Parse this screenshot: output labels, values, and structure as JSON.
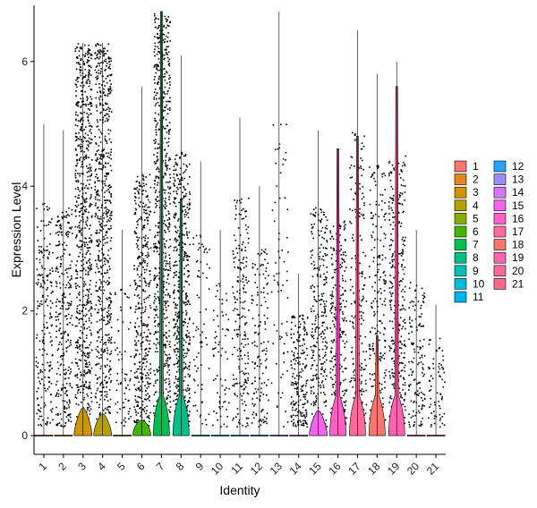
{
  "chart_data": {
    "type": "violin",
    "xlabel": "Identity",
    "ylabel": "Expression Level",
    "ylim": [
      -0.3,
      6.9
    ],
    "yticks": [
      0,
      2,
      4,
      6
    ],
    "categories": [
      "1",
      "2",
      "3",
      "4",
      "5",
      "6",
      "7",
      "8",
      "9",
      "10",
      "11",
      "12",
      "13",
      "14",
      "15",
      "16",
      "17",
      "18",
      "19",
      "20",
      "21"
    ],
    "max_values": [
      5.0,
      4.9,
      6.3,
      6.3,
      3.3,
      5.6,
      6.8,
      6.1,
      4.4,
      3.3,
      5.1,
      4.0,
      6.8,
      2.6,
      4.9,
      4.6,
      6.5,
      5.8,
      6.0,
      3.3,
      2.1
    ],
    "violin_peaks": [
      0,
      0,
      0.45,
      0.35,
      0,
      0.25,
      6.8,
      3.8,
      0,
      0,
      0,
      0,
      0,
      0,
      0.4,
      4.6,
      4.8,
      1.6,
      5.6,
      0,
      0
    ],
    "point_density": [
      3,
      4,
      10,
      9,
      1,
      6,
      10,
      7,
      1,
      1,
      3,
      2,
      1,
      3,
      4,
      4,
      3,
      3,
      5,
      2,
      1
    ],
    "colors": [
      "#F8766D",
      "#E7851E",
      "#D09400",
      "#B2A100",
      "#89AC00",
      "#45B500",
      "#00BC51",
      "#00C087",
      "#00C0B2",
      "#00BCD6",
      "#00B3F2",
      "#29A3FF",
      "#9C8DFF",
      "#D277FF",
      "#F166E8",
      "#FF61C7",
      "#FF6C9C",
      "#F8766D",
      "#FF64B0",
      "#FF6A98",
      "#FF6A88"
    ],
    "legend": {
      "position": "right",
      "entries": [
        "1",
        "2",
        "3",
        "4",
        "5",
        "6",
        "7",
        "8",
        "9",
        "10",
        "11",
        "12",
        "13",
        "14",
        "15",
        "16",
        "17",
        "18",
        "19",
        "20",
        "21"
      ]
    }
  }
}
